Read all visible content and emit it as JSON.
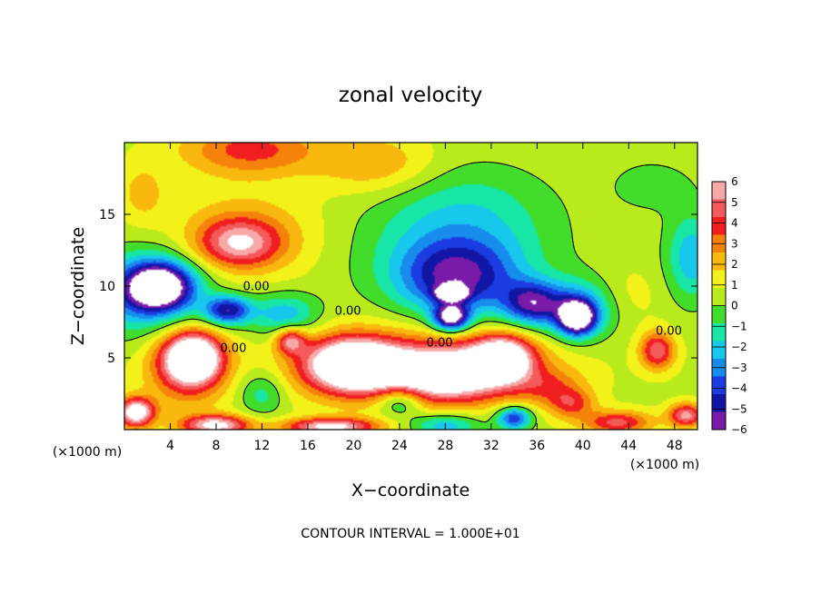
{
  "chart_data": {
    "type": "heatmap",
    "title": "zonal velocity",
    "xlabel": "X−coordinate",
    "ylabel": "Z−coordinate",
    "x_unit_note": "(×1000 m)",
    "y_unit_note": "(×1000 m)",
    "xlim": [
      0,
      50
    ],
    "ylim": [
      0,
      20
    ],
    "x_ticks": [
      4,
      8,
      12,
      16,
      20,
      24,
      28,
      32,
      36,
      40,
      44,
      48
    ],
    "y_ticks": [
      5,
      10,
      15
    ],
    "colorbar": {
      "ticks": [
        6,
        5,
        4,
        3,
        2,
        1,
        0,
        -1,
        -2,
        -3,
        -4,
        -5,
        -6
      ],
      "tick_labels": [
        "6",
        "5",
        "4",
        "3",
        "2",
        "1",
        "0",
        "−1",
        "−2",
        "−3",
        "−4",
        "−5",
        "−6"
      ],
      "colors": [
        "#f7a8a8",
        "#f55a5a",
        "#f01e1e",
        "#f5820a",
        "#f8b80e",
        "#f2f21a",
        "#b8ea1c",
        "#42dc2a",
        "#18e6a6",
        "#18c8ec",
        "#188cec",
        "#1a3ce0",
        "#1216a4",
        "#7a1aa8"
      ]
    },
    "contour_labels": [
      {
        "text": "0.00",
        "x": 11.5,
        "z": 9.7
      },
      {
        "text": "0.00",
        "x": 19.5,
        "z": 8.0
      },
      {
        "text": "0.00",
        "x": 9.5,
        "z": 5.4
      },
      {
        "text": "0.00",
        "x": 27.5,
        "z": 5.8
      },
      {
        "text": "0.00",
        "x": 47.5,
        "z": 6.6
      }
    ],
    "annotation": "CONTOUR INTERVAL = 1.000E+01",
    "grid": false,
    "legend_placement": "right colorbar",
    "features": [
      {
        "x": 10,
        "z": 13.0,
        "value": 4,
        "sx": 3.5,
        "sz": 1.6
      },
      {
        "x": 10.5,
        "z": 13.5,
        "value": 2,
        "sx": 6,
        "sz": 3
      },
      {
        "x": 11,
        "z": 19.5,
        "value": 3.2,
        "sx": 6,
        "sz": 1.8
      },
      {
        "x": 22,
        "z": 18.5,
        "value": 2,
        "sx": 5,
        "sz": 2
      },
      {
        "x": 1.6,
        "z": 16.5,
        "value": 1.5,
        "sx": 2,
        "sz": 2
      },
      {
        "x": 29,
        "z": 10.5,
        "value": -4.5,
        "sx": 5,
        "sz": 2.5
      },
      {
        "x": 29,
        "z": 12.5,
        "value": -2.5,
        "sx": 8,
        "sz": 4
      },
      {
        "x": 30,
        "z": 16,
        "value": -1,
        "sx": 7,
        "sz": 3
      },
      {
        "x": 49.5,
        "z": 12,
        "value": -3,
        "sx": 2.2,
        "sz": 3
      },
      {
        "x": 46,
        "z": 17,
        "value": -1,
        "sx": 4,
        "sz": 2
      },
      {
        "x": 3,
        "z": 10,
        "value": -7,
        "sx": 2.8,
        "sz": 1.6
      },
      {
        "x": 2,
        "z": 9.5,
        "value": -4,
        "sx": 5,
        "sz": 2.8
      },
      {
        "x": 9,
        "z": 8.3,
        "value": -5.5,
        "sx": 2,
        "sz": 1
      },
      {
        "x": 14,
        "z": 8,
        "value": -3,
        "sx": 3,
        "sz": 1.5
      },
      {
        "x": 28.5,
        "z": 7.8,
        "value": -7,
        "sx": 1.5,
        "sz": 0.9
      },
      {
        "x": 28.5,
        "z": 9.5,
        "value": -6,
        "sx": 1.3,
        "sz": 0.5
      },
      {
        "x": 35.5,
        "z": 8.8,
        "value": -5,
        "sx": 2.5,
        "sz": 1.5
      },
      {
        "x": 39.5,
        "z": 7.8,
        "value": -7,
        "sx": 1.5,
        "sz": 1.1
      },
      {
        "x": 39.5,
        "z": 8.3,
        "value": -4,
        "sx": 3,
        "sz": 2
      },
      {
        "x": 44,
        "z": 9.5,
        "value": 0.6,
        "sx": 3,
        "sz": 2
      },
      {
        "x": 46.5,
        "z": 5.5,
        "value": 4.5,
        "sx": 1.5,
        "sz": 1.3
      },
      {
        "x": 6,
        "z": 5,
        "value": 7,
        "sx": 2.3,
        "sz": 1.6
      },
      {
        "x": 5.5,
        "z": 4.5,
        "value": 4,
        "sx": 3.5,
        "sz": 2.8
      },
      {
        "x": 14.5,
        "z": 6.2,
        "value": 4.5,
        "sx": 1.3,
        "sz": 0.9
      },
      {
        "x": 20,
        "z": 4.5,
        "value": 7.5,
        "sx": 3.8,
        "sz": 1.7
      },
      {
        "x": 20,
        "z": 4.5,
        "value": 3,
        "sx": 6,
        "sz": 2.5
      },
      {
        "x": 28,
        "z": 3.8,
        "value": 6,
        "sx": 5,
        "sz": 1.8
      },
      {
        "x": 33,
        "z": 5,
        "value": 6.5,
        "sx": 2.5,
        "sz": 1.5
      },
      {
        "x": 30,
        "z": 4.5,
        "value": 3,
        "sx": 8,
        "sz": 2.5
      },
      {
        "x": 39,
        "z": 1.8,
        "value": 3,
        "sx": 2,
        "sz": 1
      },
      {
        "x": 37,
        "z": 3,
        "value": 2,
        "sx": 3,
        "sz": 1.2
      },
      {
        "x": 1,
        "z": 1.2,
        "value": 7,
        "sx": 1.6,
        "sz": 1
      },
      {
        "x": 8,
        "z": 0.3,
        "value": 6,
        "sx": 3,
        "sz": 0.7
      },
      {
        "x": 18,
        "z": 0.2,
        "value": 6,
        "sx": 4,
        "sz": 0.6
      },
      {
        "x": 28,
        "z": 0.3,
        "value": -3,
        "sx": 3,
        "sz": 0.8
      },
      {
        "x": 43,
        "z": 0.5,
        "value": 4,
        "sx": 3,
        "sz": 0.8
      },
      {
        "x": 49,
        "z": 1,
        "value": 5,
        "sx": 1.5,
        "sz": 0.8
      },
      {
        "x": 34,
        "z": 0.8,
        "value": -5,
        "sx": 1.5,
        "sz": 0.8
      },
      {
        "x": 24,
        "z": 2,
        "value": -3,
        "sx": 2,
        "sz": 1
      },
      {
        "x": 12,
        "z": 2.5,
        "value": -2,
        "sx": 2,
        "sz": 1.5
      }
    ]
  }
}
